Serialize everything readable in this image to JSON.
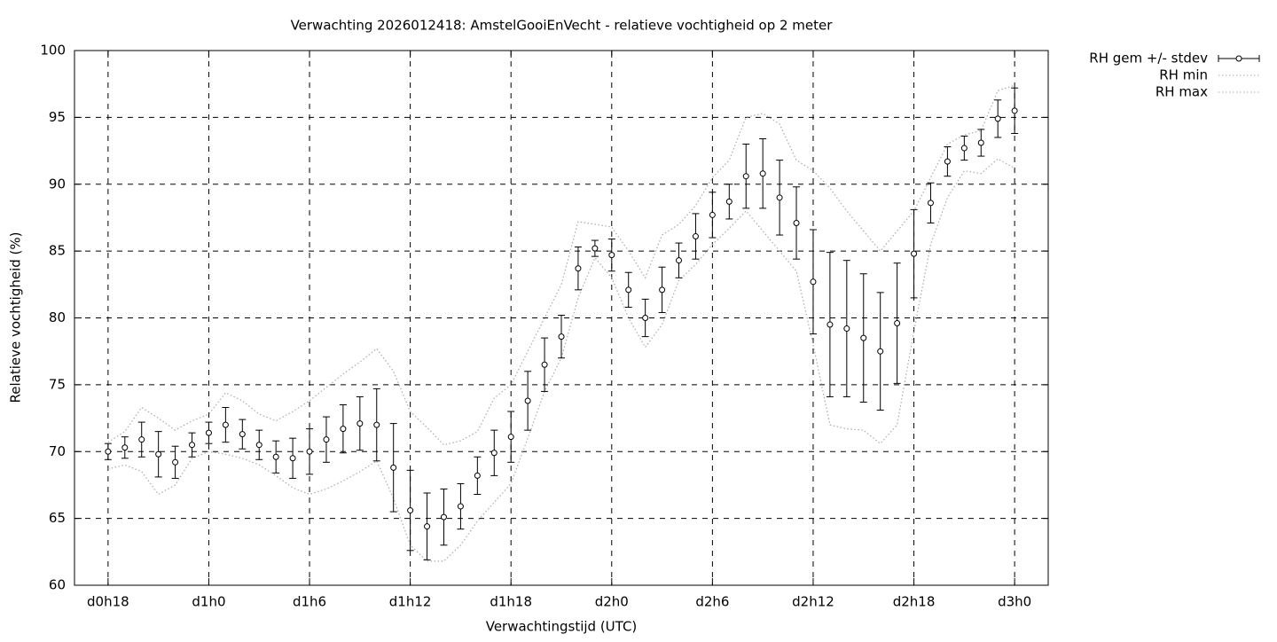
{
  "chart_data": {
    "type": "errorbar_line",
    "title": "Verwachting 2026012418: AmstelGooiEnVecht - relatieve vochtigheid op 2 meter",
    "x_label": "Verwachtingstijd (UTC)",
    "y_label": "Relatieve vochtigheid (%)",
    "x": [
      18,
      19,
      20,
      21,
      22,
      23,
      24,
      25,
      26,
      27,
      28,
      29,
      30,
      31,
      32,
      33,
      34,
      35,
      36,
      37,
      38,
      39,
      40,
      41,
      42,
      43,
      44,
      45,
      46,
      47,
      48,
      49,
      50,
      51,
      52,
      53,
      54,
      55,
      56,
      57,
      58,
      59,
      60,
      61,
      62,
      63,
      64,
      65,
      66,
      67,
      68,
      69,
      70,
      71,
      72
    ],
    "xlim": [
      16,
      74
    ],
    "xticks": [
      {
        "value": 18,
        "label": "d0h18"
      },
      {
        "value": 24,
        "label": "d1h0"
      },
      {
        "value": 30,
        "label": "d1h6"
      },
      {
        "value": 36,
        "label": "d1h12"
      },
      {
        "value": 42,
        "label": "d1h18"
      },
      {
        "value": 48,
        "label": "d2h0"
      },
      {
        "value": 54,
        "label": "d2h6"
      },
      {
        "value": 60,
        "label": "d2h12"
      },
      {
        "value": 66,
        "label": "d2h18"
      },
      {
        "value": 72,
        "label": "d3h0"
      }
    ],
    "ylim": [
      60,
      100
    ],
    "yticks": [
      60,
      65,
      70,
      75,
      80,
      85,
      90,
      95,
      100
    ],
    "grid": true,
    "series": [
      {
        "name": "RH gem +/- stdev",
        "color": "#000000",
        "values": [
          70.0,
          70.3,
          70.9,
          69.8,
          69.2,
          70.5,
          71.4,
          72.0,
          71.3,
          70.5,
          69.6,
          69.5,
          70.0,
          70.9,
          71.7,
          72.1,
          72.0,
          68.8,
          65.6,
          64.4,
          65.1,
          65.9,
          68.2,
          69.9,
          71.1,
          73.8,
          76.5,
          78.6,
          83.7,
          85.2,
          84.7,
          82.1,
          80.0,
          82.1,
          84.3,
          86.1,
          87.7,
          88.7,
          90.6,
          90.8,
          89.0,
          87.1,
          82.7,
          79.5,
          79.2,
          78.5,
          77.5,
          79.6,
          84.8,
          88.6,
          91.7,
          92.7,
          93.1,
          94.9,
          95.5
        ],
        "errors": [
          0.6,
          0.8,
          1.3,
          1.7,
          1.2,
          0.9,
          0.8,
          1.3,
          1.1,
          1.1,
          1.2,
          1.5,
          1.7,
          1.7,
          1.8,
          2.0,
          2.7,
          3.3,
          3.0,
          2.5,
          2.1,
          1.7,
          1.4,
          1.7,
          1.9,
          2.2,
          2.0,
          1.6,
          1.6,
          0.6,
          1.2,
          1.3,
          1.4,
          1.7,
          1.3,
          1.7,
          1.7,
          1.3,
          2.4,
          2.6,
          2.8,
          2.7,
          3.9,
          5.4,
          5.1,
          4.8,
          4.4,
          4.5,
          3.3,
          1.5,
          1.1,
          0.9,
          1.0,
          1.4,
          1.7
        ]
      },
      {
        "name": "RH min",
        "color": "#aaaaaa",
        "values": [
          68.7,
          69.0,
          68.5,
          66.8,
          67.5,
          69.5,
          70.0,
          69.8,
          69.5,
          69.0,
          68.2,
          67.3,
          66.8,
          67.2,
          67.8,
          68.5,
          69.3,
          66.5,
          63.0,
          61.8,
          61.8,
          63.0,
          64.8,
          66.2,
          67.6,
          71.0,
          74.5,
          77.0,
          81.5,
          84.5,
          83.0,
          80.0,
          77.8,
          79.5,
          82.8,
          84.0,
          85.5,
          86.7,
          88.0,
          86.5,
          85.0,
          83.5,
          78.0,
          72.0,
          71.7,
          71.6,
          70.6,
          72.0,
          79.0,
          85.5,
          89.0,
          91.0,
          90.8,
          91.9,
          91.2
        ]
      },
      {
        "name": "RH max",
        "color": "#aaaaaa",
        "values": [
          70.7,
          71.5,
          73.3,
          72.5,
          71.6,
          72.3,
          72.8,
          74.4,
          73.8,
          72.8,
          72.3,
          73.0,
          73.8,
          74.8,
          75.8,
          76.7,
          77.7,
          76.0,
          73.0,
          71.8,
          70.5,
          70.8,
          71.5,
          74.0,
          75.0,
          77.5,
          80.0,
          82.5,
          87.2,
          87.0,
          86.8,
          85.0,
          83.0,
          86.2,
          87.0,
          88.4,
          90.5,
          91.8,
          95.0,
          95.3,
          94.5,
          91.8,
          91.0,
          89.7,
          88.0,
          86.5,
          85.0,
          86.5,
          88.0,
          90.5,
          93.0,
          93.7,
          94.0,
          97.0,
          97.4
        ]
      }
    ]
  }
}
